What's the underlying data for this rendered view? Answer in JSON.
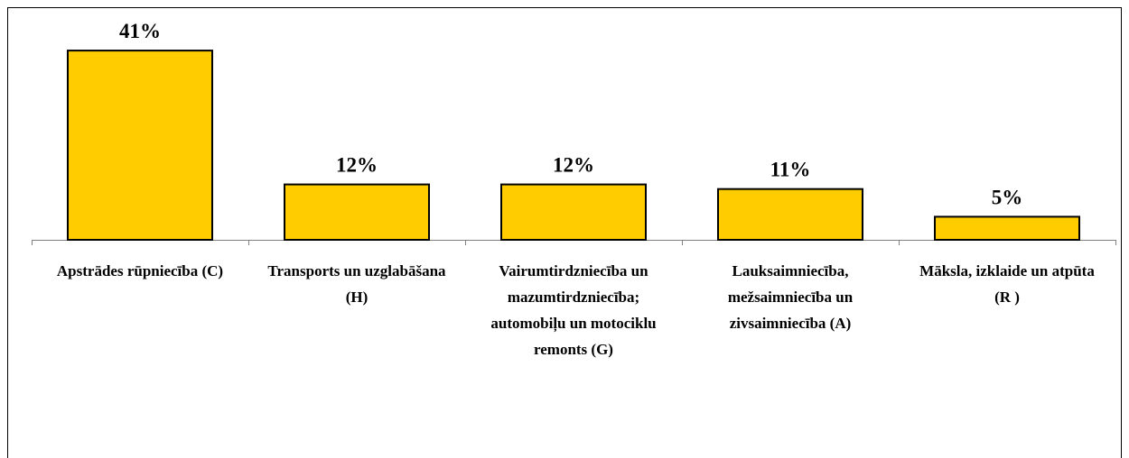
{
  "chart_data": {
    "type": "bar",
    "categories": [
      "Apstrādes rūpniecība (C)",
      "Transports un uzglabāšana (H)",
      "Vairumtirdzniecība un mazumtirdzniecība; automobiļu un motociklu remonts (G)",
      "Lauksaimniecība, mežsaimniecība un zivsaimniecība (A)",
      "Māksla, izklaide un atpūta (R )"
    ],
    "values": [
      41,
      12,
      12,
      11,
      5
    ],
    "value_labels": [
      "41%",
      "12%",
      "12%",
      "11%",
      "5%"
    ],
    "color": "#ffcc00"
  }
}
